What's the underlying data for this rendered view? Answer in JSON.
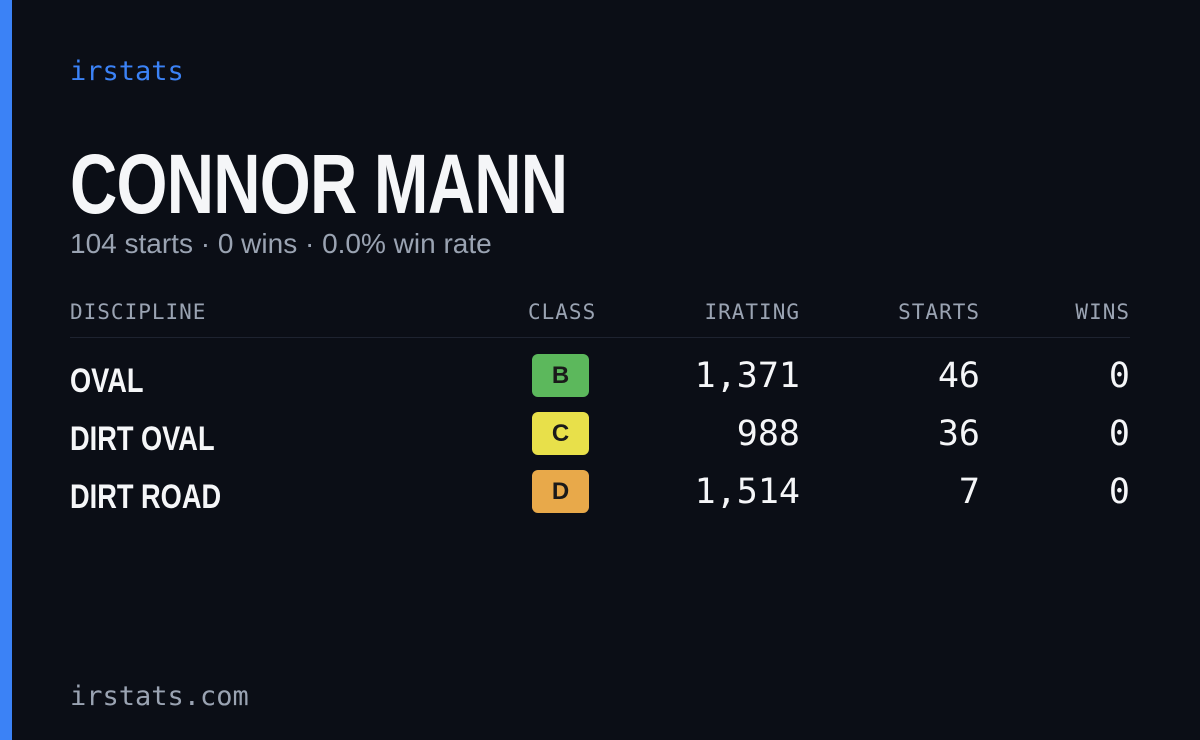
{
  "brand": "irstats",
  "driver": {
    "name": "CONNOR MANN",
    "summary": "104 starts · 0 wins · 0.0% win rate"
  },
  "table": {
    "headers": [
      "DISCIPLINE",
      "CLASS",
      "IRATING",
      "STARTS",
      "WINS"
    ],
    "rows": [
      {
        "discipline": "OVAL",
        "class": "B",
        "class_color": "#5cb85c",
        "irating": "1,371",
        "starts": 46,
        "wins": 0
      },
      {
        "discipline": "DIRT OVAL",
        "class": "C",
        "class_color": "#e8e04a",
        "irating": "988",
        "starts": 36,
        "wins": 0
      },
      {
        "discipline": "DIRT ROAD",
        "class": "D",
        "class_color": "#e8a94a",
        "irating": "1,514",
        "starts": 7,
        "wins": 0
      }
    ]
  },
  "footer": "irstats.com"
}
